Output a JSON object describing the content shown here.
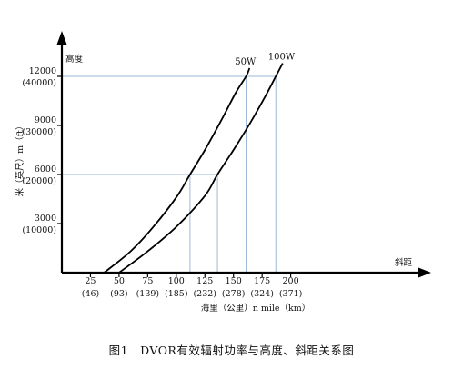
{
  "chart_data": {
    "type": "line",
    "caption": "图1　DVOR有效辐射功率与高度、斜距关系图",
    "ylabel_top": "高度",
    "ylabel_side": "米（英尺）m（ft）",
    "xlabel_right": "斜距",
    "xlabel": "海里（公里）n mile（km）",
    "xlim": [
      0,
      200
    ],
    "ylim": [
      0,
      13500
    ],
    "x_ticks": [
      {
        "value": 25,
        "label": "25",
        "sub": "(46)"
      },
      {
        "value": 50,
        "label": "50",
        "sub": "(93)"
      },
      {
        "value": 75,
        "label": "75",
        "sub": "(139)"
      },
      {
        "value": 100,
        "label": "100",
        "sub": "(185)"
      },
      {
        "value": 125,
        "label": "125",
        "sub": "(232)"
      },
      {
        "value": 150,
        "label": "150",
        "sub": "(278)"
      },
      {
        "value": 175,
        "label": "175",
        "sub": "(324)"
      },
      {
        "value": 200,
        "label": "200",
        "sub": "(371)"
      }
    ],
    "y_ticks": [
      {
        "value": 3000,
        "label": "3000",
        "sub": "(10000)"
      },
      {
        "value": 6000,
        "label": "6000",
        "sub": "(20000)"
      },
      {
        "value": 9000,
        "label": "9000",
        "sub": "(30000)"
      },
      {
        "value": 12000,
        "label": "12000",
        "sub": "(40000)"
      }
    ],
    "reference_lines": [
      {
        "y": 12000,
        "x_end": 187
      },
      {
        "y": 6000,
        "x_end": 136
      },
      {
        "x": 112,
        "y_end": 6000
      },
      {
        "x": 136,
        "y_end": 6000
      },
      {
        "x": 161,
        "y_end": 12000
      },
      {
        "x": 187,
        "y_end": 12000
      }
    ],
    "series": [
      {
        "name": "50W",
        "x": [
          37,
          60,
          80,
          100,
          112,
          125,
          140,
          152,
          161,
          164
        ],
        "y": [
          0,
          1300,
          2800,
          4600,
          6000,
          7500,
          9400,
          11000,
          12000,
          12500
        ]
      },
      {
        "name": "100W",
        "x": [
          50,
          75,
          100,
          125,
          136,
          150,
          165,
          178,
          187,
          193
        ],
        "y": [
          0,
          1300,
          2800,
          4700,
          6000,
          7500,
          9200,
          10800,
          12000,
          12800
        ]
      }
    ]
  }
}
